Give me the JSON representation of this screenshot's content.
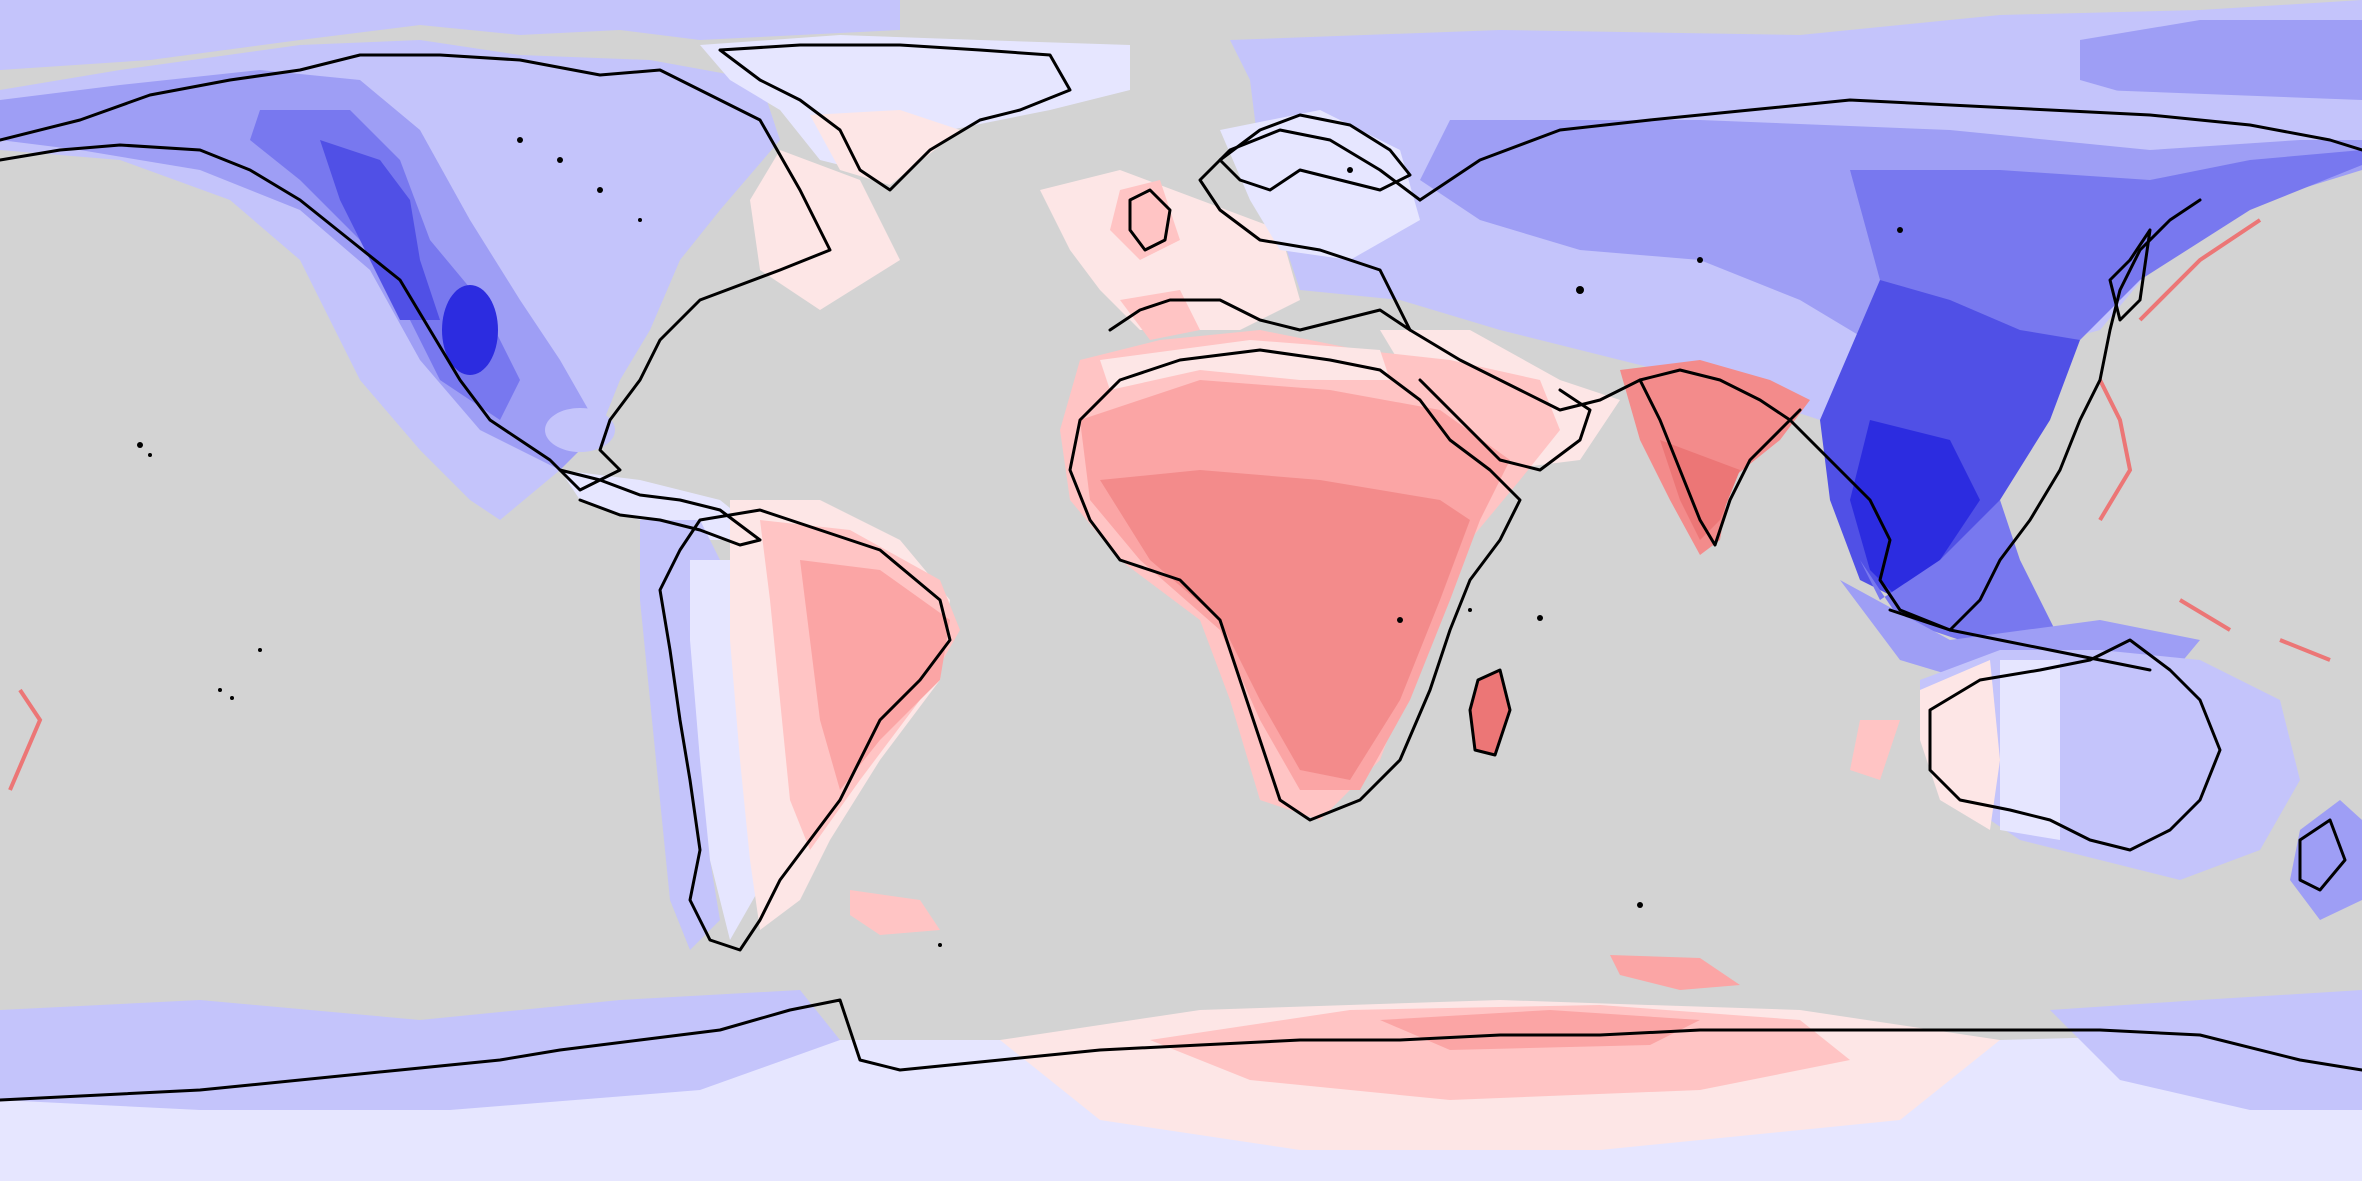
{
  "map": {
    "projection": "equirectangular",
    "background_color": "#d3d3d3",
    "coastline_color": "#000000",
    "color_scale": {
      "positive_colors": [
        "#fde6e6",
        "#ffc4c4",
        "#fba5a5",
        "#f38b8b",
        "#ec7676"
      ],
      "negative_colors": [
        "#e6e6ff",
        "#c4c4fb",
        "#9e9ef5",
        "#7878ef",
        "#5050e6",
        "#2c2ce0"
      ]
    },
    "regions": [
      {
        "name": "north-america-west",
        "sign": "negative",
        "level": 4
      },
      {
        "name": "north-america-east",
        "sign": "negative",
        "level": 2
      },
      {
        "name": "greenland",
        "sign": "negative",
        "level": 1
      },
      {
        "name": "south-america-east",
        "sign": "positive",
        "level": 2
      },
      {
        "name": "south-america-west",
        "sign": "negative",
        "level": 2
      },
      {
        "name": "africa",
        "sign": "positive",
        "level": 3
      },
      {
        "name": "western-europe",
        "sign": "positive",
        "level": 1
      },
      {
        "name": "northern-eurasia",
        "sign": "negative",
        "level": 3
      },
      {
        "name": "east-asia",
        "sign": "negative",
        "level": 5
      },
      {
        "name": "india",
        "sign": "positive",
        "level": 3
      },
      {
        "name": "australia",
        "sign": "negative",
        "level": 2
      },
      {
        "name": "antarctica-west",
        "sign": "negative",
        "level": 2
      },
      {
        "name": "antarctica-east",
        "sign": "positive",
        "level": 2
      }
    ]
  }
}
